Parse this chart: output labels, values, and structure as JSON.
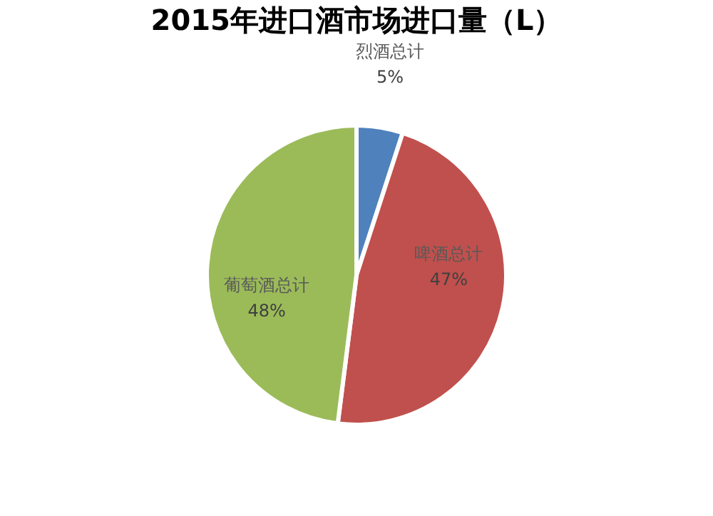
{
  "chart_data": {
    "type": "pie",
    "title": "2015年进口酒市场进口量（L）",
    "categories": [
      "烈酒总计",
      "啤酒总计",
      "葡萄酒总计"
    ],
    "values": [
      5,
      47,
      48
    ],
    "colors": [
      "#4f81bd",
      "#c0504d",
      "#9bbb59"
    ],
    "value_labels": [
      "5%",
      "47%",
      "48%"
    ],
    "legend": false
  }
}
